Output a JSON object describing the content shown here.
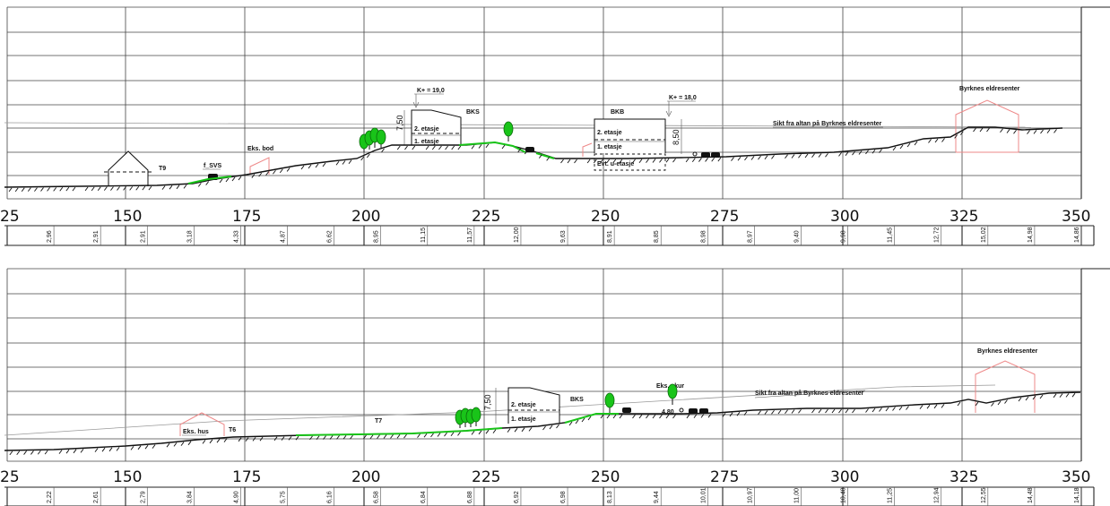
{
  "axis_labels": [
    "25",
    "150",
    "175",
    "200",
    "225",
    "250",
    "275",
    "300",
    "325",
    "350"
  ],
  "top": {
    "heights": [
      "2,96",
      "2,91",
      "2,91",
      "3,18",
      "4,33",
      "4,87",
      "6,62",
      "8,95",
      "11,15",
      "11,57",
      "12,00",
      "9,63",
      "8,91",
      "8,85",
      "8,98",
      "8,97",
      "9,40",
      "9,98",
      "11,45",
      "12,72",
      "15,02",
      "14,98",
      "14,86"
    ],
    "labels": {
      "t9": "T9",
      "f_svs": "f_SVS",
      "eks_bod": "Eks. bod",
      "k_bks": "K+ = 19,0",
      "bks": "BKS",
      "floor2_a": "2. etasje",
      "floor1_a": "1. etasje",
      "dim_a": "7,50",
      "k_bkb": "K+ = 18,0",
      "bkb": "BKB",
      "floor2_b": "2. etasje",
      "floor1_b": "1. etasje",
      "floor0_b": "Evt. u-etasje",
      "dim_b": "8,50",
      "sight": "Sikt fra altan på Byrknes eldresenter",
      "byrknes": "Byrknes eldresenter"
    }
  },
  "bottom": {
    "heights": [
      "2,22",
      "2,61",
      "2,79",
      "3,84",
      "4,90",
      "5,75",
      "6,16",
      "6,58",
      "6,84",
      "6,88",
      "6,92",
      "6,98",
      "8,13",
      "9,44",
      "10,01",
      "10,97",
      "11,00",
      "10,48",
      "11,25",
      "12,94",
      "12,55",
      "14,48",
      "14,18"
    ],
    "labels": {
      "eks_hus": "Eks. hus",
      "t6": "T6",
      "t7": "T7",
      "dim": "7,50",
      "floor2": "2. etasje",
      "floor1": "1. etasje",
      "bks": "BKS",
      "eks_skur": "Eks. skur",
      "dim_small": "4,80",
      "sight": "Sikt fra altan på Byrknes eldresenter",
      "byrknes": "Byrknes eldresenter"
    }
  },
  "colors": {
    "terrain_green": "#19c419",
    "existing_building": "#ee8888",
    "sight_line": "#999999",
    "grid": "#444444"
  }
}
